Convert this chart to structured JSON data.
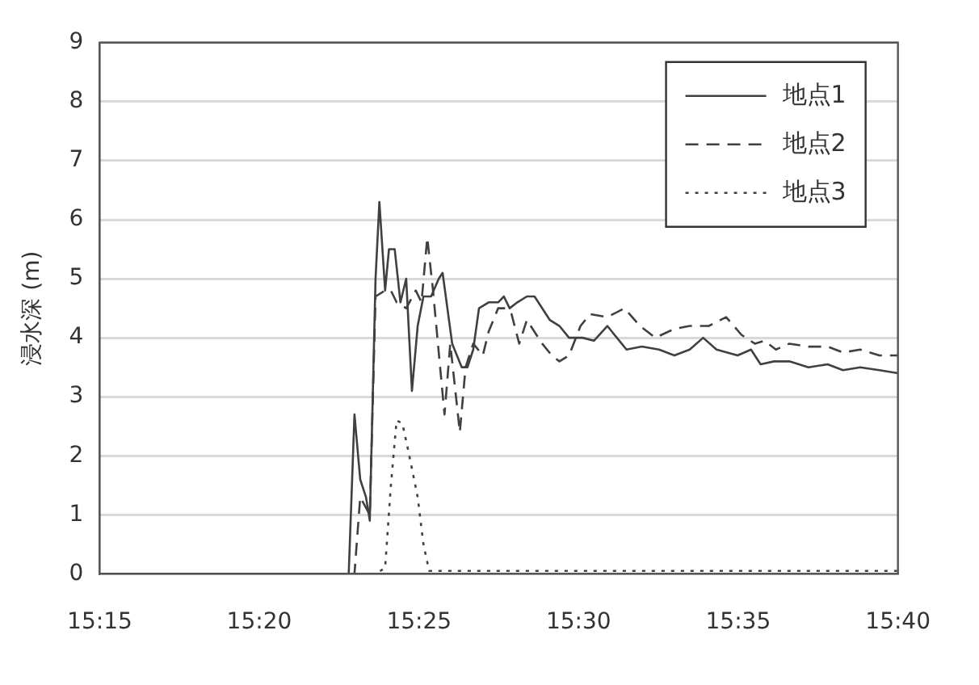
{
  "chart_data": {
    "type": "line",
    "ylabel": "浸水深 (m)",
    "xlim": [
      15.25,
      15.6667
    ],
    "xticks": [
      {
        "value": 15.25,
        "label": "15:15"
      },
      {
        "value": 15.3333,
        "label": "15:20"
      },
      {
        "value": 15.4167,
        "label": "15:25"
      },
      {
        "value": 15.5,
        "label": "15:30"
      },
      {
        "value": 15.5833,
        "label": "15:35"
      },
      {
        "value": 15.6667,
        "label": "15:40"
      }
    ],
    "ylim": [
      0,
      9
    ],
    "yticks": [
      0,
      1,
      2,
      3,
      4,
      5,
      6,
      7,
      8,
      9
    ],
    "grid": "y",
    "legend": "top right",
    "marker": "none",
    "series": [
      {
        "name": "地点1",
        "color": "#404040",
        "line_style": "solid",
        "x": [
          15.25,
          15.38,
          15.383,
          15.386,
          15.389,
          15.391,
          15.394,
          15.396,
          15.399,
          15.401,
          15.404,
          15.407,
          15.41,
          15.413,
          15.416,
          15.419,
          15.423,
          15.427,
          15.429,
          15.434,
          15.439,
          15.442,
          15.445,
          15.448,
          15.453,
          15.458,
          15.461,
          15.464,
          15.468,
          15.473,
          15.477,
          15.485,
          15.49,
          15.495,
          15.502,
          15.508,
          15.515,
          15.52,
          15.525,
          15.533,
          15.542,
          15.55,
          15.558,
          15.565,
          15.572,
          15.583,
          15.59,
          15.595,
          15.602,
          15.61,
          15.62,
          15.63,
          15.638,
          15.647,
          15.657,
          15.6667
        ],
        "values": [
          0,
          0,
          2.7,
          1.6,
          1.3,
          0.9,
          5.0,
          6.3,
          4.8,
          5.5,
          5.5,
          4.6,
          5.0,
          3.1,
          4.2,
          4.7,
          4.7,
          5.0,
          5.1,
          3.9,
          3.5,
          3.5,
          3.8,
          4.5,
          4.6,
          4.6,
          4.7,
          4.5,
          4.6,
          4.7,
          4.7,
          4.3,
          4.2,
          4.0,
          4.0,
          3.95,
          4.2,
          4.0,
          3.8,
          3.85,
          3.8,
          3.7,
          3.8,
          4.0,
          3.8,
          3.7,
          3.8,
          3.55,
          3.6,
          3.6,
          3.5,
          3.55,
          3.45,
          3.5,
          3.45,
          3.4
        ]
      },
      {
        "name": "地点2",
        "color": "#404040",
        "line_style": "dashed",
        "x": [
          15.25,
          15.383,
          15.386,
          15.391,
          15.394,
          15.399,
          15.402,
          15.405,
          15.41,
          15.415,
          15.418,
          15.421,
          15.424,
          15.43,
          15.433,
          15.438,
          15.441,
          15.445,
          15.45,
          15.453,
          15.458,
          15.462,
          15.465,
          15.469,
          15.473,
          15.481,
          15.486,
          15.49,
          15.495,
          15.501,
          15.506,
          15.515,
          15.524,
          15.532,
          15.54,
          15.55,
          15.558,
          15.568,
          15.577,
          15.585,
          15.592,
          15.597,
          15.603,
          15.61,
          15.62,
          15.63,
          15.638,
          15.647,
          15.657,
          15.6667
        ],
        "values": [
          0,
          0,
          1.3,
          1.0,
          4.7,
          4.8,
          4.8,
          4.6,
          4.5,
          4.8,
          4.6,
          5.7,
          4.8,
          2.7,
          3.9,
          2.4,
          3.5,
          3.9,
          3.7,
          4.1,
          4.5,
          4.5,
          4.4,
          3.9,
          4.3,
          3.9,
          3.7,
          3.6,
          3.7,
          4.2,
          4.4,
          4.35,
          4.5,
          4.2,
          4.0,
          4.15,
          4.2,
          4.2,
          4.35,
          4.05,
          3.9,
          3.95,
          3.8,
          3.9,
          3.85,
          3.85,
          3.75,
          3.8,
          3.7,
          3.7
        ]
      },
      {
        "name": "地点3",
        "color": "#404040",
        "line_style": "dotted",
        "x": [
          15.25,
          15.394,
          15.399,
          15.402,
          15.405,
          15.408,
          15.411,
          15.416,
          15.419,
          15.422,
          15.6667
        ],
        "values": [
          0,
          0,
          0.1,
          1.5,
          2.6,
          2.55,
          2.1,
          1.3,
          0.5,
          0.05,
          0.05
        ]
      }
    ]
  }
}
